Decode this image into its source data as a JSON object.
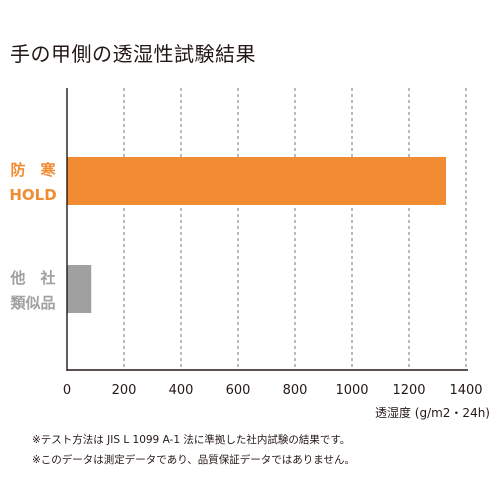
{
  "chart_data": {
    "type": "bar",
    "orientation": "horizontal",
    "title": "手の甲側の透湿性試験結果",
    "categories": [
      {
        "lines": [
          "防　寒",
          "HOLD"
        ],
        "color": "#f28c33"
      },
      {
        "lines": [
          "他　社",
          "類似品"
        ],
        "color": "#a0a0a0"
      }
    ],
    "values": [
      1330,
      85
    ],
    "xlabel": "透湿度 (g/m2・24h)",
    "xlim": [
      0,
      1400
    ],
    "xticks": [
      0,
      200,
      400,
      600,
      800,
      1000,
      1200,
      1400
    ],
    "grid": "vertical dashed",
    "legend": "none"
  },
  "notes": [
    "※テスト方法は JIS L 1099 A-1 法に準拠した社内試験の結果です。",
    "※このデータは測定データであり、品質保証データではありません。"
  ]
}
